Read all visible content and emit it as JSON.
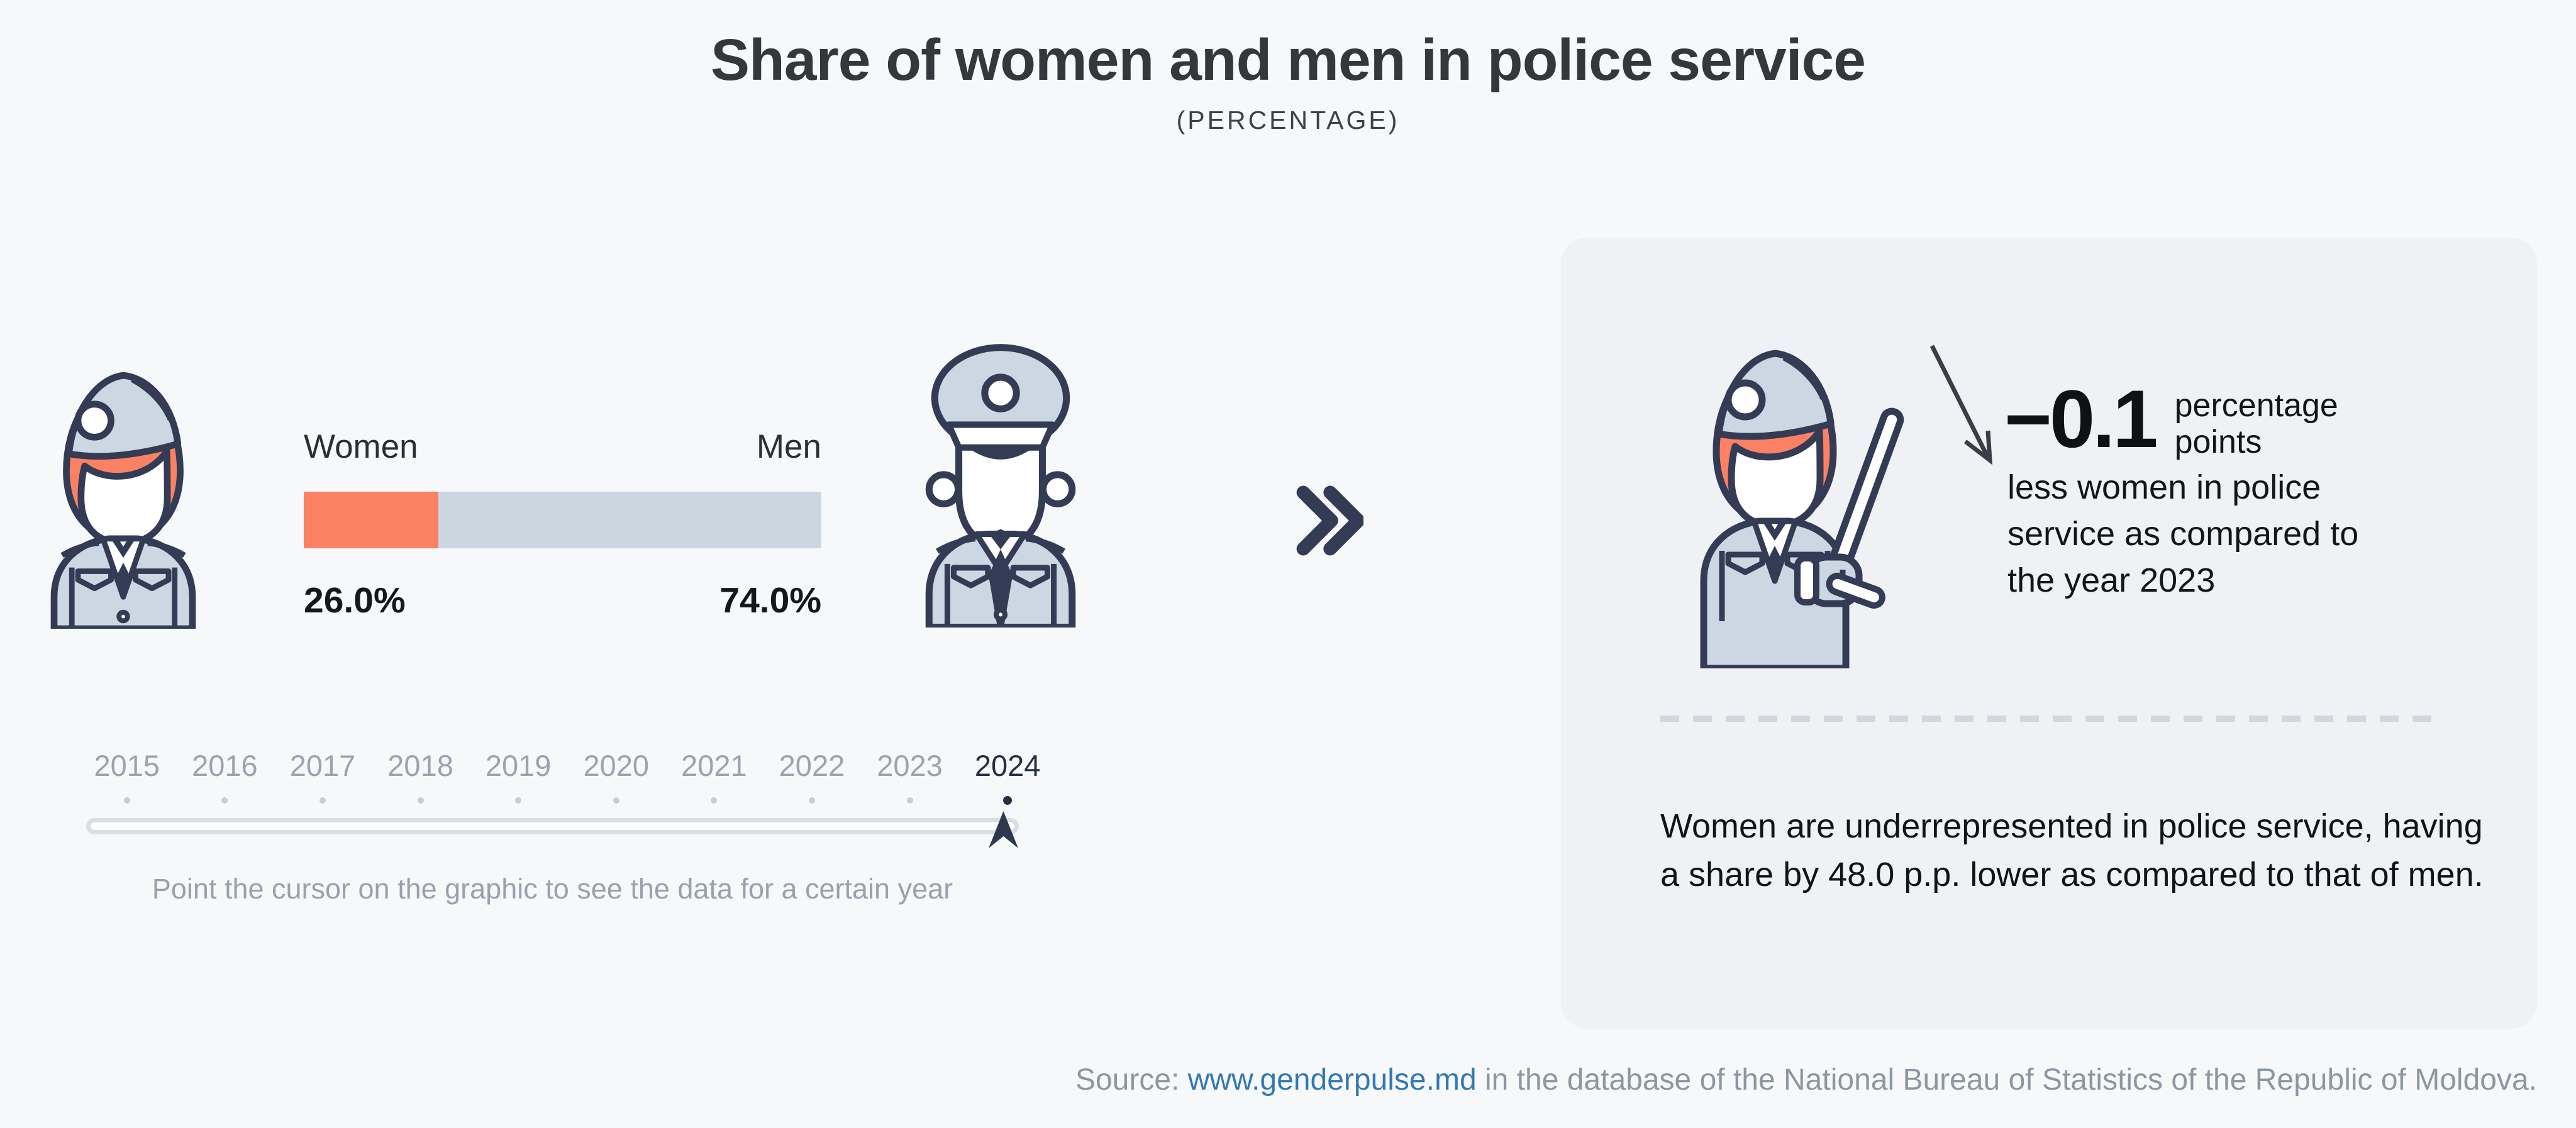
{
  "page": {
    "title": "Share of women and men in police service",
    "subtitle": "(PERCENTAGE)"
  },
  "chart_data": {
    "type": "bar",
    "stacked": true,
    "title": "Share of women and men in police service",
    "unit": "percentage",
    "year_selected": "2024",
    "categories": [
      "Women",
      "Men"
    ],
    "values": [
      26.0,
      74.0
    ],
    "value_labels": [
      "26.0%",
      "74.0%"
    ],
    "series_colors": [
      "#FA8164",
      "#CBD6E1"
    ],
    "change_vs_prev_year_pp": -0.1,
    "gap_between_men_and_women_pp": 48.0,
    "slider_years": [
      "2015",
      "2016",
      "2017",
      "2018",
      "2019",
      "2020",
      "2021",
      "2022",
      "2023",
      "2024"
    ]
  },
  "bar_section": {
    "label_women": "Women",
    "label_men": "Men",
    "value_women": "26.0%",
    "value_men": "74.0%"
  },
  "timeline": {
    "years": [
      "2015",
      "2016",
      "2017",
      "2018",
      "2019",
      "2020",
      "2021",
      "2022",
      "2023",
      "2024"
    ],
    "selected_year": "2024",
    "caption": "Point the cursor on the graphic to see the data for a certain year"
  },
  "panel": {
    "delta_value": "−0.1",
    "delta_unit": "percentage points",
    "delta_description": "less women in police service as compared to the year 2023",
    "summary": "Women are underrepresented in police service, having a share by 48.0 p.p. lower as compared to that of men."
  },
  "footer": {
    "prefix": "Source: ",
    "link": "www.genderpulse.md",
    "suffix": " in the database of the National Bureau of Statistics of the Republic of Moldova."
  },
  "colors": {
    "page_bg": "#F7F8FA",
    "panel_bg": "#F0F1F5",
    "navy": "#333C54",
    "orange": "#FA8164",
    "steel": "#CBD7E3",
    "bar_men": "#CBD6E1",
    "ink": "#17191D",
    "title": "#34373C",
    "year_gray": "#9BA3AF",
    "year_selected": "#252E44",
    "dot_gray": "#C7CDD6",
    "track_border": "#D9DEE5",
    "caption_gray": "#98A1AD",
    "dash": "#D2D7DE",
    "link_blue": "#3278B6",
    "footer_gray": "#8D96A3",
    "arrow_dark": "#3A3E47"
  }
}
